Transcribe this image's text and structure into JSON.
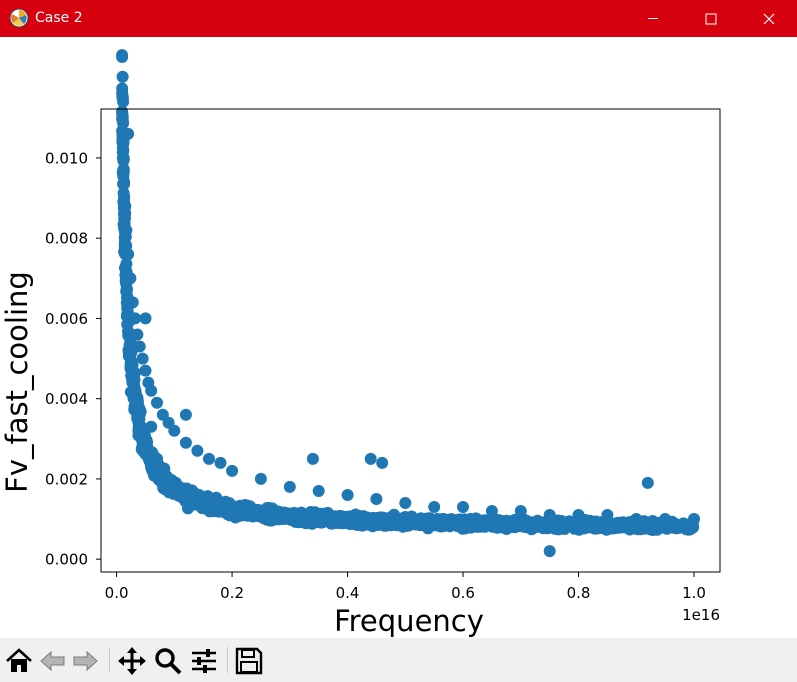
{
  "window": {
    "title": "Case 2",
    "icon": "matplotlib-logo-icon",
    "controls": [
      "minimize-icon",
      "maximize-icon",
      "close-icon"
    ],
    "titlebar_color": "#d7000f"
  },
  "chart_data": {
    "type": "scatter",
    "title": "",
    "xlabel": "Frequency",
    "ylabel": "Fv_fast_cooling",
    "x_offset_text": "1e16",
    "x_scale_factor": 1e+16,
    "xlim": [
      -0.027,
      1.045
    ],
    "ylim": [
      -0.00032,
      0.01122
    ],
    "xticks": [
      0.0,
      0.2,
      0.4,
      0.6,
      0.8,
      1.0
    ],
    "xtick_labels": [
      "0.0",
      "0.2",
      "0.4",
      "0.6",
      "0.8",
      "1.0"
    ],
    "yticks": [
      0.0,
      0.002,
      0.004,
      0.006,
      0.008,
      0.01
    ],
    "ytick_labels": [
      "0.000",
      "0.002",
      "0.004",
      "0.006",
      "0.008",
      "0.010"
    ],
    "grid": false,
    "marker_color": "#1f77b4",
    "series": [
      {
        "trend": "Fv decays from about 0.0105 at x=0.01 to about 0.0011 at x=1.0 with wide scatter band",
        "points": [
          [
            0.01,
            0.0106
          ],
          [
            0.012,
            0.01
          ],
          [
            0.013,
            0.0094
          ],
          [
            0.015,
            0.0088
          ],
          [
            0.017,
            0.0082
          ],
          [
            0.02,
            0.0076
          ],
          [
            0.024,
            0.007
          ],
          [
            0.028,
            0.0064
          ],
          [
            0.032,
            0.006
          ],
          [
            0.036,
            0.0056
          ],
          [
            0.04,
            0.0053
          ],
          [
            0.045,
            0.005
          ],
          [
            0.05,
            0.0047
          ],
          [
            0.055,
            0.0044
          ],
          [
            0.06,
            0.0042
          ],
          [
            0.07,
            0.0039
          ],
          [
            0.08,
            0.0036
          ],
          [
            0.09,
            0.0034
          ],
          [
            0.1,
            0.0032
          ],
          [
            0.12,
            0.0029
          ],
          [
            0.14,
            0.0027
          ],
          [
            0.16,
            0.0025
          ],
          [
            0.18,
            0.0024
          ],
          [
            0.2,
            0.0022
          ],
          [
            0.25,
            0.002
          ],
          [
            0.3,
            0.0018
          ],
          [
            0.35,
            0.0017
          ],
          [
            0.4,
            0.0016
          ],
          [
            0.45,
            0.0015
          ],
          [
            0.5,
            0.0014
          ],
          [
            0.55,
            0.0013
          ],
          [
            0.6,
            0.0013
          ],
          [
            0.65,
            0.0012
          ],
          [
            0.7,
            0.0012
          ],
          [
            0.75,
            0.0011
          ],
          [
            0.8,
            0.0011
          ],
          [
            0.85,
            0.0011
          ],
          [
            0.9,
            0.001
          ],
          [
            0.95,
            0.001
          ],
          [
            1.0,
            0.001
          ],
          [
            0.34,
            0.0025
          ],
          [
            0.44,
            0.0025
          ],
          [
            0.46,
            0.0024
          ],
          [
            0.92,
            0.0019
          ],
          [
            0.75,
            0.0002
          ],
          [
            0.12,
            0.0036
          ],
          [
            0.05,
            0.006
          ],
          [
            0.06,
            0.0033
          ],
          [
            0.02,
            0.0106
          ]
        ]
      }
    ]
  },
  "toolbar": {
    "buttons": [
      {
        "name": "home-button",
        "icon": "home-icon"
      },
      {
        "name": "back-button",
        "icon": "back-arrow-icon"
      },
      {
        "name": "forward-button",
        "icon": "forward-arrow-icon"
      },
      {
        "name": "pan-button",
        "icon": "move-icon"
      },
      {
        "name": "zoom-button",
        "icon": "magnifier-icon"
      },
      {
        "name": "configure-subplots-button",
        "icon": "sliders-icon"
      },
      {
        "name": "save-button",
        "icon": "floppy-disk-icon"
      }
    ]
  }
}
